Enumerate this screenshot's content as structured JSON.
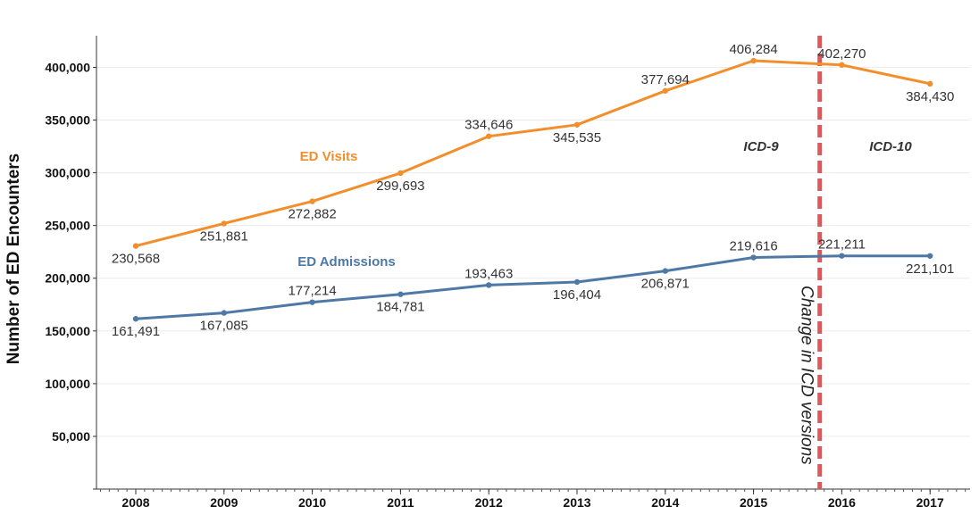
{
  "chart_data": {
    "type": "line",
    "title": "",
    "xlabel": "",
    "ylabel": "Number of ED Encounters",
    "ylim": [
      0,
      430000
    ],
    "categories": [
      "2008",
      "2009",
      "2010",
      "2011",
      "2012",
      "2013",
      "2014",
      "2015",
      "2016",
      "2017"
    ],
    "y_ticks": [
      50000,
      100000,
      150000,
      200000,
      250000,
      300000,
      350000,
      400000
    ],
    "y_tick_labels": [
      "50,000",
      "100,000",
      "150,000",
      "200,000",
      "250,000",
      "300,000",
      "350,000",
      "400,000"
    ],
    "grid": true,
    "series": [
      {
        "name": "ED Visits",
        "color": "#f28e2b",
        "values": [
          230568,
          251881,
          272882,
          299693,
          334646,
          345535,
          377694,
          406284,
          402270,
          384430
        ],
        "labels": [
          "230,568",
          "251,881",
          "272,882",
          "299,693",
          "334,646",
          "345,535",
          "377,694",
          "406,284",
          "402,270",
          "384,430"
        ]
      },
      {
        "name": "ED Admissions",
        "color": "#4e79a7",
        "values": [
          161491,
          167085,
          177214,
          184781,
          193463,
          196404,
          206871,
          219616,
          221211,
          221101
        ],
        "labels": [
          "161,491",
          "167,085",
          "177,214",
          "184,781",
          "193,463",
          "196,404",
          "206,871",
          "219,616",
          "221,211",
          "221,101"
        ]
      }
    ],
    "annotations": {
      "marker_position": 7.75,
      "marker_color": "#e15759",
      "marker_text": "Change in ICD versions",
      "left_region_label": "ICD-9",
      "right_region_label": "ICD-10"
    }
  }
}
